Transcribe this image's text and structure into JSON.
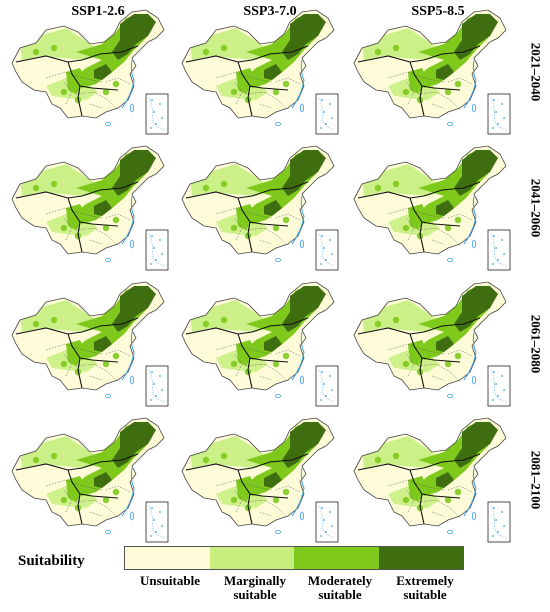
{
  "columns": [
    "SSP1-2.6",
    "SSP3-7.0",
    "SSP5-8.5"
  ],
  "rows": [
    "2021–2040",
    "2041–2060",
    "2061–2080",
    "2081–2100"
  ],
  "legend": {
    "title": "Suitability",
    "classes": [
      {
        "label_line1": "Unsuitable",
        "label_line2": "",
        "color": "#fdfbd8"
      },
      {
        "label_line1": "Marginally",
        "label_line2": "suitable",
        "color": "#c7ee7f"
      },
      {
        "label_line1": "Moderately",
        "label_line2": "suitable",
        "color": "#7fc91c"
      },
      {
        "label_line1": "Extremely",
        "label_line2": "suitable",
        "color": "#3f6e10"
      }
    ]
  },
  "colors": {
    "boundary": "#111111",
    "province_lines": "#555555",
    "water": "#3a9fe0"
  }
}
